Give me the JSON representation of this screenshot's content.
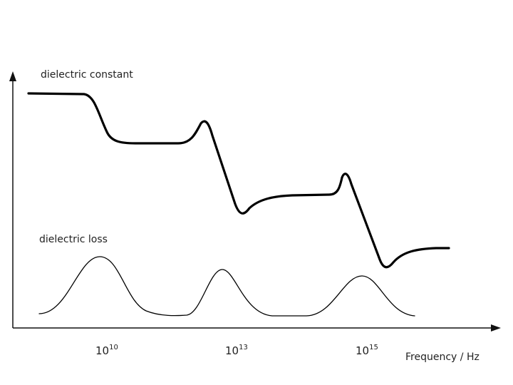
{
  "chart_data": {
    "type": "line",
    "title": "",
    "xlabel": "Frequency / Hz",
    "ylabel": "",
    "grid": false,
    "x_ticks": [
      {
        "base": "10",
        "exp": "10"
      },
      {
        "base": "10",
        "exp": "13"
      },
      {
        "base": "10",
        "exp": "15"
      }
    ],
    "series": [
      {
        "name": "dielectric constant"
      },
      {
        "name": "dielectric loss"
      }
    ]
  }
}
